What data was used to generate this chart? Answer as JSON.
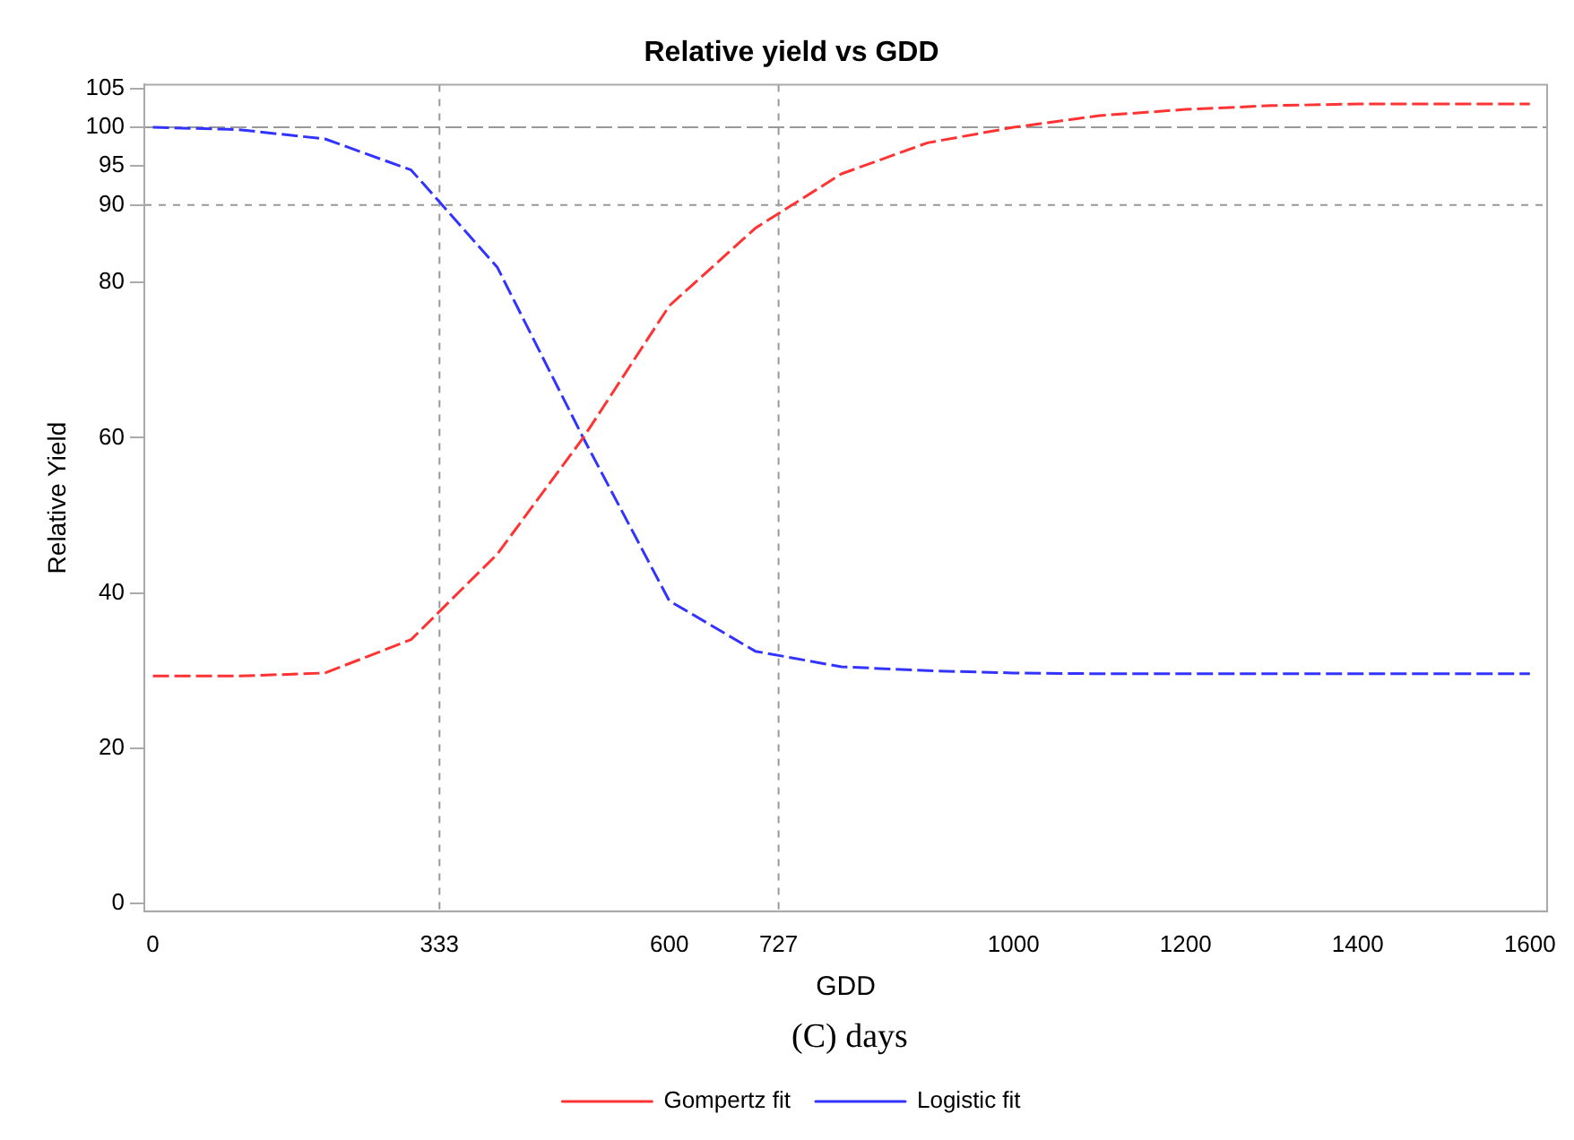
{
  "chart_data": {
    "type": "line",
    "title": "Relative yield vs GDD",
    "xlabel": "GDD",
    "ylabel": "Relative Yield",
    "annotations": [
      "(C) days"
    ],
    "x": [
      0,
      100,
      200,
      300,
      400,
      500,
      600,
      700,
      800,
      900,
      1000,
      1100,
      1200,
      1300,
      1400,
      1500,
      1600
    ],
    "series": [
      {
        "name": "Gompertz fit",
        "color": "#ff3333",
        "line_style": "dashed",
        "values": [
          29.3,
          29.3,
          29.7,
          34,
          45,
          60,
          77,
          87,
          94,
          98,
          100,
          101.5,
          102.3,
          102.8,
          103,
          103,
          103
        ]
      },
      {
        "name": "Logistic fit",
        "color": "#3333ff",
        "line_style": "dashed",
        "values": [
          100,
          99.7,
          98.5,
          94.5,
          82,
          60,
          39,
          32.5,
          30.5,
          30,
          29.7,
          29.6,
          29.6,
          29.6,
          29.6,
          29.6,
          29.6
        ]
      }
    ],
    "xlim": [
      -10,
      1620
    ],
    "xticks": [
      0,
      333,
      600,
      727,
      1000,
      1200,
      1400,
      1600
    ],
    "ylim": [
      -1,
      105.5
    ],
    "yticks": [
      0,
      20,
      40,
      60,
      80,
      90,
      95,
      100,
      105
    ],
    "ref_lines": [
      {
        "axis": "y",
        "value": 100,
        "color": "#999999",
        "line_style": "dashed"
      },
      {
        "axis": "y",
        "value": 90,
        "color": "#999999",
        "line_style": "dotted"
      },
      {
        "axis": "x",
        "value": 333,
        "color": "#999999",
        "line_style": "dotted"
      },
      {
        "axis": "x",
        "value": 727,
        "color": "#999999",
        "line_style": "dotted"
      }
    ],
    "grid": false,
    "legend": "bottom",
    "marker": "none"
  }
}
